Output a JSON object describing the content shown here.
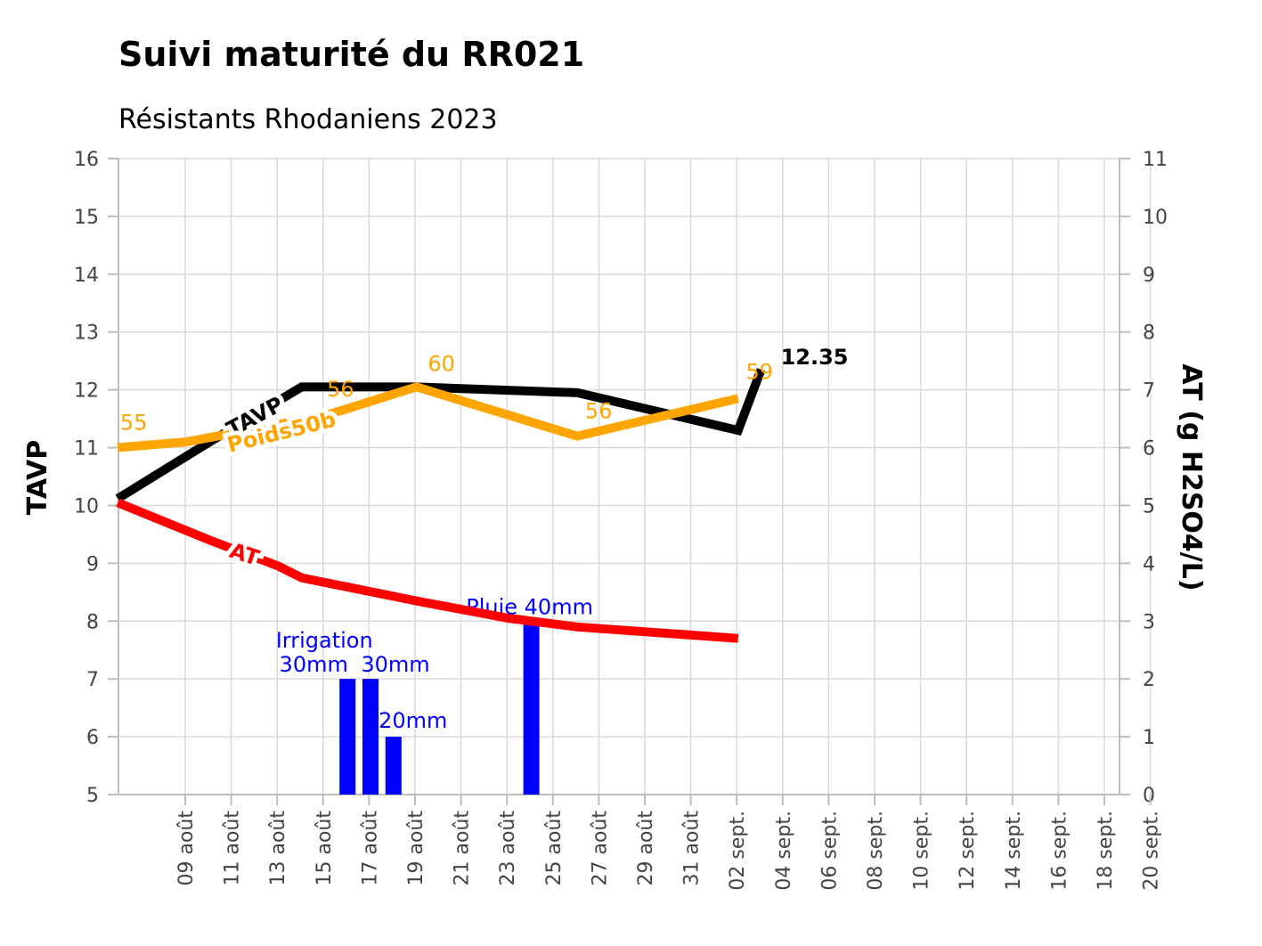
{
  "chart_data": {
    "type": "line",
    "title": "Suivi maturité du RR021",
    "subtitle": "Résistants Rhodaniens 2023",
    "ylabel": "TAVP",
    "y2label": "AT (g H2SO4/L)",
    "ylim": [
      5,
      16
    ],
    "y2lim": [
      0,
      11
    ],
    "y_ticks": [
      5,
      6,
      7,
      8,
      9,
      10,
      11,
      12,
      13,
      14,
      15,
      16
    ],
    "y2_ticks": [
      0,
      1,
      2,
      3,
      4,
      5,
      6,
      7,
      8,
      9,
      10,
      11
    ],
    "x_ticks": [
      "09 août",
      "11 août",
      "13 août",
      "15 août",
      "17 août",
      "19 août",
      "21 août",
      "23 août",
      "25 août",
      "27 août",
      "29 août",
      "31 août",
      "02 sept.",
      "04 sept.",
      "06 sept.",
      "08 sept.",
      "10 sept.",
      "12 sept.",
      "14 sept.",
      "16 sept.",
      "18 sept.",
      "20 sept."
    ],
    "grid": true,
    "series": [
      {
        "name": "TAVP",
        "axis": "left",
        "color": "#000000",
        "x": [
          "2023-08-08",
          "2023-08-12",
          "2023-08-16",
          "2023-08-21",
          "2023-08-28",
          "2023-09-04",
          "2023-09-05"
        ],
        "y": [
          10.12,
          11.1,
          12.05,
          12.05,
          11.95,
          11.3,
          12.35
        ],
        "label": "TAVP",
        "end_label": "12.35"
      },
      {
        "name": "Poids50b",
        "axis": "left",
        "color": "#ffa500",
        "x": [
          "2023-08-08",
          "2023-08-11",
          "2023-08-17",
          "2023-08-21",
          "2023-08-28",
          "2023-09-04"
        ],
        "y": [
          11.0,
          11.1,
          11.55,
          12.05,
          11.2,
          11.85
        ],
        "point_labels": [
          "55",
          "",
          "56",
          "60",
          "56",
          "59"
        ],
        "label": "Poids50b"
      },
      {
        "name": "AT",
        "axis": "right",
        "color": "#ff0000",
        "x": [
          "2023-08-08",
          "2023-08-12",
          "2023-08-15",
          "2023-08-16",
          "2023-08-21",
          "2023-08-25",
          "2023-08-28",
          "2023-09-04"
        ],
        "y": [
          5.05,
          4.4,
          3.95,
          3.75,
          3.35,
          3.05,
          2.9,
          2.7
        ],
        "label": "AT"
      }
    ],
    "bars": {
      "name": "Pluie/Irrigation",
      "axis": "right",
      "color": "#0000ff",
      "x": [
        "2023-08-18",
        "2023-08-19",
        "2023-08-20",
        "2023-08-26"
      ],
      "values": [
        2,
        2,
        1,
        3
      ],
      "labels": [
        "30mm",
        "30mm",
        "20mm",
        "Pluie 40mm"
      ],
      "group_label": "Irrigation"
    }
  }
}
